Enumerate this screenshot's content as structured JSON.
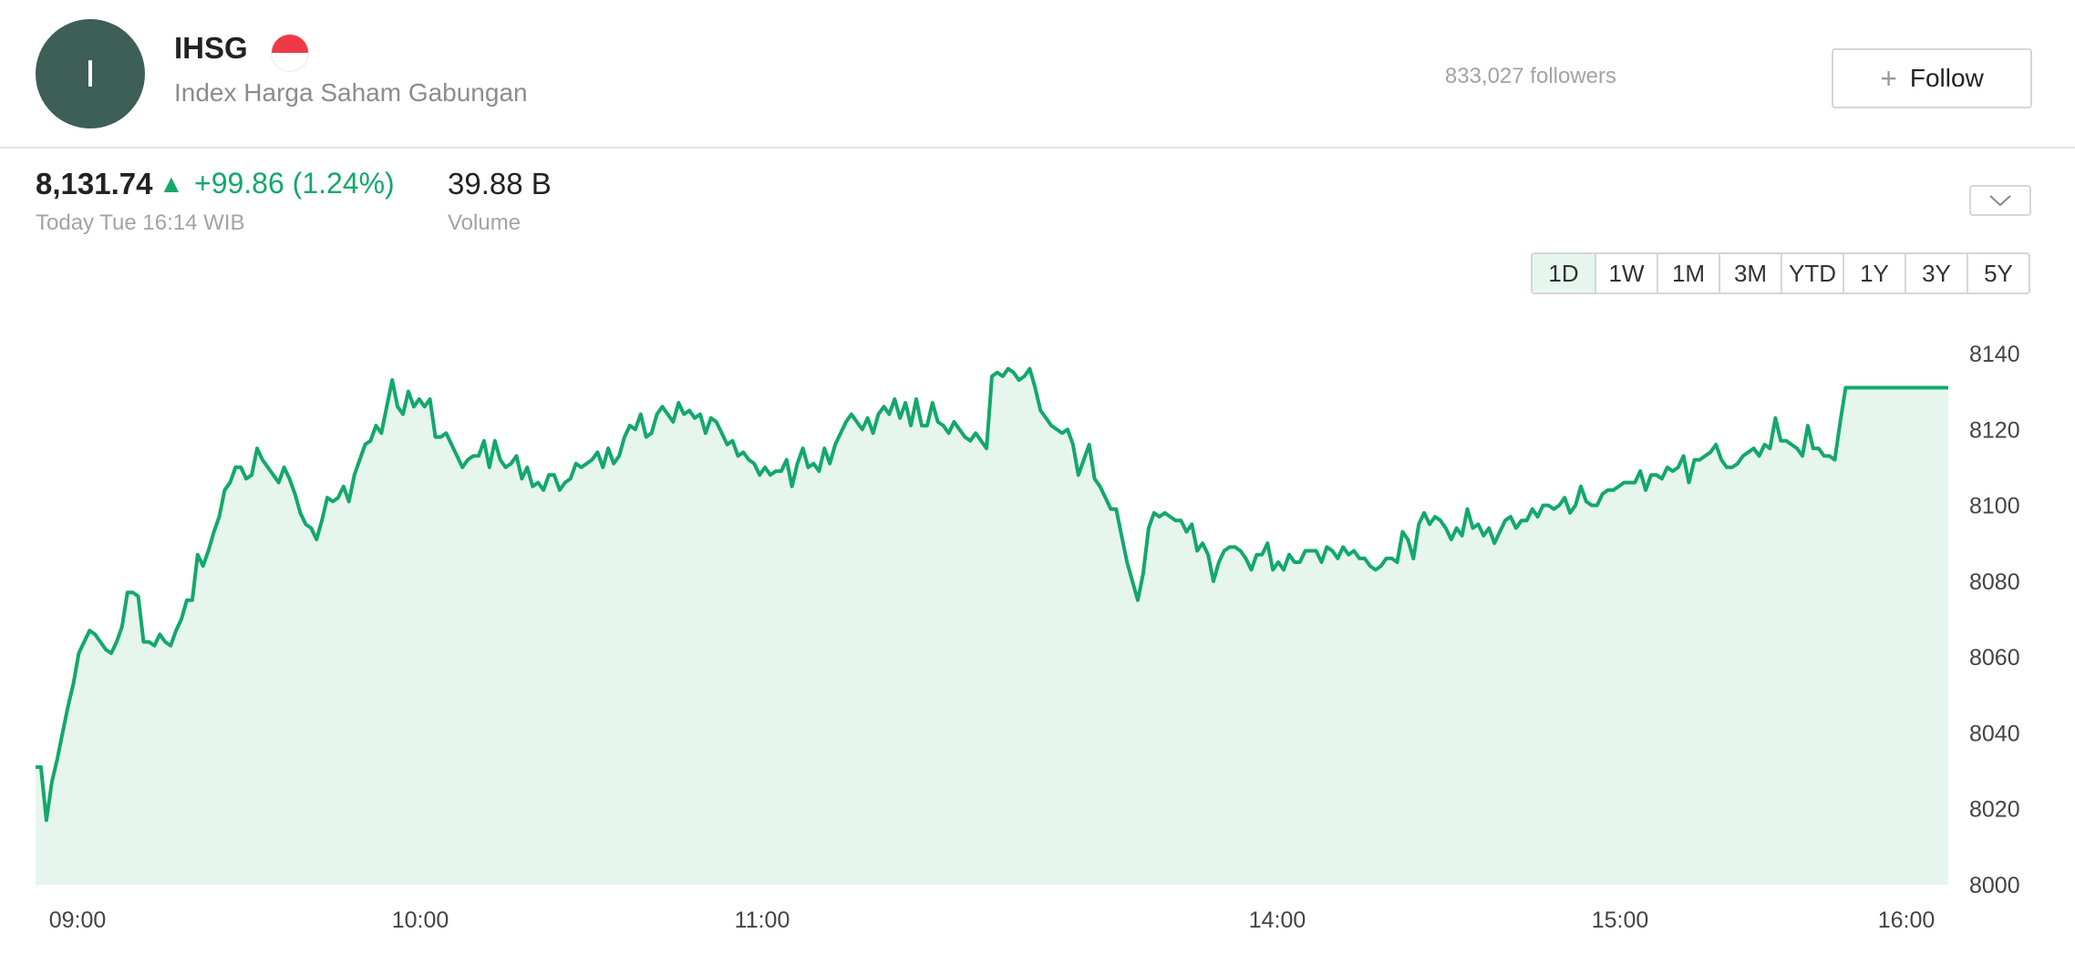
{
  "stock": {
    "avatar_letter": "I",
    "symbol": "IHSG",
    "flag_icon": "indonesia-flag-icon",
    "name": "Index Harga Saham Gabungan",
    "followers": "833,027 followers",
    "follow_label": "Follow"
  },
  "quote": {
    "price": "8,131.74",
    "direction_icon": "up-triangle-icon",
    "change": "+99.86 (1.24%)",
    "time": "Today Tue 16:14 WIB",
    "volume": "39.88 B",
    "volume_label": "Volume"
  },
  "colors": {
    "accent": "#13a86b",
    "area_fill": "#e6f6ef",
    "avatar": "#3d5f58"
  },
  "ranges": [
    "1D",
    "1W",
    "1M",
    "3M",
    "YTD",
    "1Y",
    "3Y",
    "5Y"
  ],
  "active_range": "1D",
  "chart_data": {
    "type": "area",
    "xlabel": "",
    "ylabel": "",
    "ylim": [
      8000,
      8140
    ],
    "y_ticks": [
      8140,
      8120,
      8100,
      8080,
      8060,
      8040,
      8020,
      8000
    ],
    "x_ticks": [
      "09:00",
      "10:00",
      "11:00",
      "14:00",
      "15:00",
      "16:00"
    ],
    "grid": false,
    "series": [
      {
        "values": [
          8031,
          8031,
          8017,
          8027,
          8033,
          8040,
          8047,
          8053,
          8061,
          8064,
          8067,
          8066,
          8064,
          8062,
          8061,
          8064,
          8068,
          8077,
          8077,
          8076,
          8064,
          8064,
          8063,
          8066,
          8064,
          8063,
          8067,
          8070,
          8075,
          8075,
          8087,
          8084,
          8088,
          8093,
          8097,
          8104,
          8106,
          8110,
          8110,
          8107,
          8108,
          8115,
          8112,
          8110,
          8108,
          8106,
          8110,
          8107,
          8103,
          8098,
          8095,
          8094,
          8091,
          8096,
          8102,
          8101,
          8102,
          8105,
          8101,
          8108,
          8112,
          8116,
          8117,
          8121,
          8119,
          8126,
          8133,
          8126,
          8124,
          8130,
          8126,
          8128,
          8126,
          8128,
          8118,
          8118,
          8119,
          8116,
          8113,
          8110,
          8112,
          8113,
          8113,
          8117,
          8110,
          8117,
          8112,
          8110,
          8111,
          8113,
          8107,
          8110,
          8105,
          8106,
          8104,
          8108,
          8108,
          8104,
          8106,
          8107,
          8111,
          8110,
          8111,
          8112,
          8114,
          8110,
          8115,
          8111,
          8113,
          8118,
          8121,
          8120,
          8124,
          8118,
          8119,
          8124,
          8126,
          8124,
          8122,
          8127,
          8124,
          8125,
          8123,
          8124,
          8119,
          8123,
          8122,
          8119,
          8116,
          8117,
          8113,
          8114,
          8112,
          8111,
          8108,
          8110,
          8108,
          8109,
          8109,
          8112,
          8105,
          8111,
          8115,
          8110,
          8111,
          8109,
          8115,
          8111,
          8116,
          8119,
          8122,
          8124,
          8122,
          8120,
          8123,
          8119,
          8124,
          8126,
          8124,
          8128,
          8123,
          8127,
          8121,
          8128,
          8121,
          8121,
          8127,
          8122,
          8121,
          8119,
          8122,
          8120,
          8118,
          8117,
          8119,
          8117,
          8115,
          8134,
          8135,
          8134,
          8136,
          8135,
          8133,
          8134,
          8136,
          8131,
          8125,
          8123,
          8121,
          8120,
          8119,
          8120,
          8116,
          8108,
          8112,
          8116,
          8107,
          8105,
          8102,
          8099,
          8099,
          8092,
          8085,
          8080,
          8075,
          8082,
          8094,
          8098,
          8097,
          8098,
          8097,
          8096,
          8096,
          8093,
          8095,
          8088,
          8090,
          8087,
          8080,
          8085,
          8088,
          8089,
          8089,
          8088,
          8086,
          8083,
          8087,
          8087,
          8090,
          8083,
          8085,
          8083,
          8087,
          8085,
          8085,
          8088,
          8088,
          8088,
          8085,
          8089,
          8088,
          8086,
          8089,
          8087,
          8088,
          8086,
          8086,
          8084,
          8083,
          8084,
          8086,
          8086,
          8085,
          8093,
          8091,
          8086,
          8095,
          8098,
          8095,
          8097,
          8096,
          8094,
          8091,
          8094,
          8092,
          8099,
          8094,
          8095,
          8092,
          8094,
          8090,
          8093,
          8096,
          8097,
          8094,
          8096,
          8096,
          8099,
          8097,
          8100,
          8100,
          8099,
          8100,
          8102,
          8098,
          8100,
          8105,
          8101,
          8100,
          8100,
          8103,
          8104,
          8104,
          8105,
          8106,
          8106,
          8106,
          8109,
          8104,
          8108,
          8108,
          8107,
          8110,
          8109,
          8110,
          8113,
          8106,
          8112,
          8112,
          8113,
          8114,
          8116,
          8112,
          8110,
          8110,
          8111,
          8113,
          8114,
          8115,
          8113,
          8116,
          8115,
          8123,
          8117,
          8117,
          8116,
          8115,
          8113,
          8121,
          8115,
          8115,
          8113,
          8113,
          8112,
          8122,
          8131,
          8131,
          8131,
          8131,
          8131,
          8131,
          8131,
          8131,
          8131,
          8131,
          8131,
          8131,
          8131,
          8131,
          8131,
          8131,
          8131,
          8131,
          8131,
          8131
        ]
      }
    ]
  }
}
